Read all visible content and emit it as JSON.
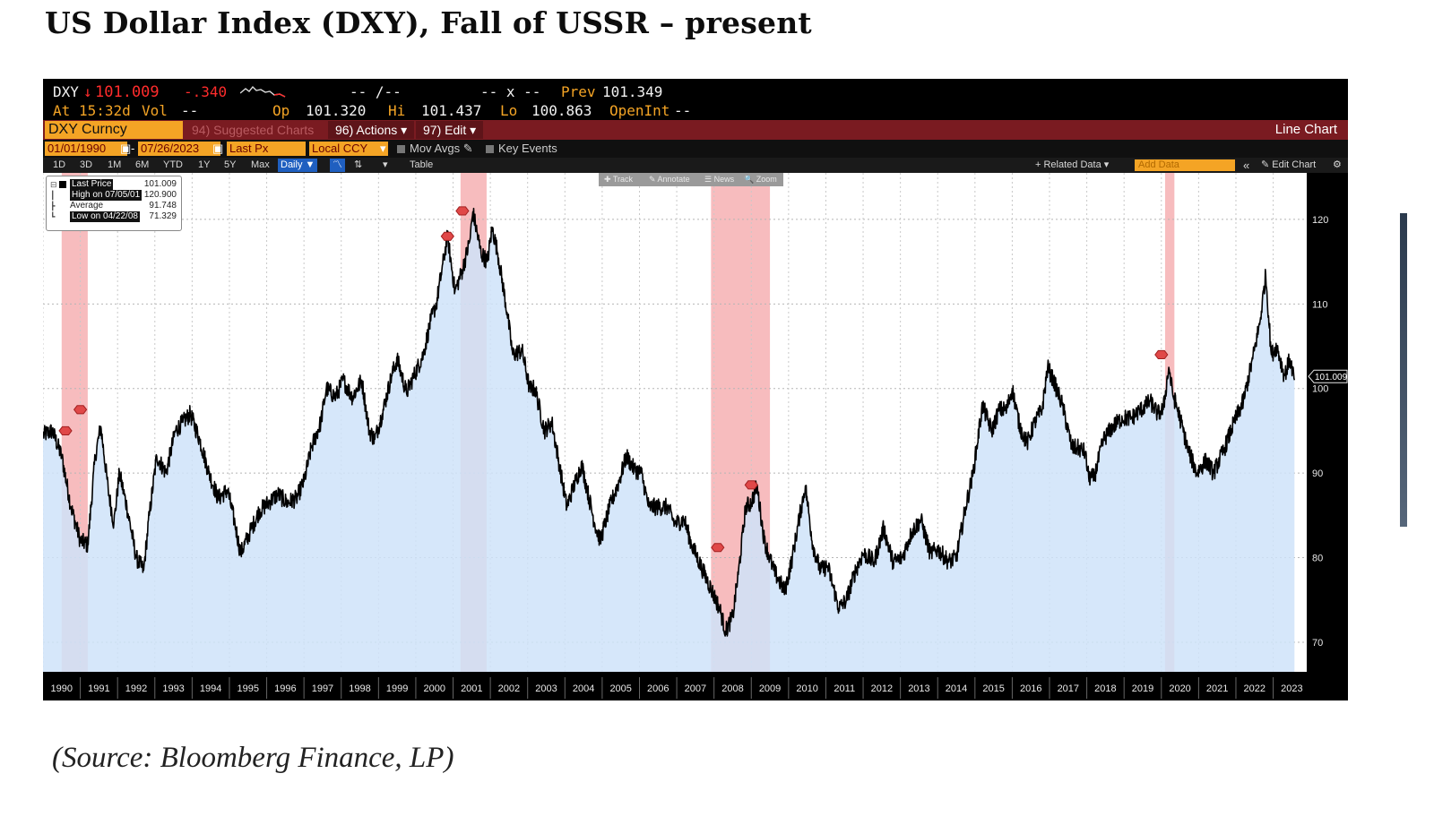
{
  "slide": {
    "title": "US Dollar Index (DXY), Fall of USSR – present",
    "source": "(Source: Bloomberg Finance, LP)"
  },
  "quote": {
    "ticker": "DXY",
    "arrow": "↓",
    "last": "101.009",
    "change": "-.340",
    "bid_ask": "-- /--",
    "size": "-- x --",
    "prev_label": "Prev",
    "prev": "101.349",
    "at_label": "At",
    "time": "15:32d",
    "vol_label": "Vol",
    "vol": "--",
    "op_label": "Op",
    "op": "101.320",
    "hi_label": "Hi",
    "hi": "101.437",
    "lo_label": "Lo",
    "lo": "100.863",
    "openint_label": "OpenInt",
    "openint": "--"
  },
  "toolbar": {
    "security": "DXY Curncy",
    "suggested": "94) Suggested Charts",
    "actions": "96) Actions ▾",
    "edit": "97) Edit ▾",
    "chart_type": "Line Chart"
  },
  "settings": {
    "date_from": "01/01/1990",
    "date_to": "07/26/2023",
    "field": "Last Px",
    "currency": "Local CCY",
    "mov_avgs": "Mov Avgs",
    "key_events": "Key Events"
  },
  "periods": [
    "1D",
    "3D",
    "1M",
    "6M",
    "YTD",
    "1Y",
    "5Y",
    "Max"
  ],
  "frequency": "Daily ▼",
  "table_label": "Table",
  "right_tools": {
    "related": "+ Related Data ▾",
    "add_data": "Add Data",
    "collapse": "«",
    "edit_chart": "Edit Chart",
    "gear": "⚙"
  },
  "chart_tools": [
    "✚ Track",
    "✎ Annotate",
    "☰ News",
    "🔍 Zoom"
  ],
  "legend": {
    "rows": [
      {
        "label": "Last Price",
        "value": "101.009"
      },
      {
        "label": "High on 07/05/01",
        "value": "120.900"
      },
      {
        "label": "Average",
        "value": "91.748"
      },
      {
        "label": "Low on 04/22/08",
        "value": "71.329"
      }
    ]
  },
  "colors": {
    "orange": "#f4a425",
    "red_bar": "#7a1b21",
    "price_red": "#ff2c2c",
    "area_fill": "#cfe3f9",
    "recession": "#f4a6a8",
    "line": "#000000"
  },
  "chart_data": {
    "type": "area",
    "title": "",
    "series": [
      {
        "name": "Last Price",
        "values_ref": "points"
      }
    ],
    "ylim": [
      66.5,
      125.5
    ],
    "yticks": [
      70,
      80,
      90,
      100,
      110,
      120
    ],
    "last_value_label": "101.009",
    "xlim": [
      1990.0,
      2023.9
    ],
    "x_tick_labels": [
      "1990",
      "1991",
      "1992",
      "1993",
      "1994",
      "1995",
      "1996",
      "1997",
      "1998",
      "1999",
      "2000",
      "2001",
      "2002",
      "2003",
      "2004",
      "2005",
      "2006",
      "2007",
      "2008",
      "2009",
      "2010",
      "2011",
      "2012",
      "2013",
      "2014",
      "2015",
      "2016",
      "2017",
      "2018",
      "2019",
      "2020",
      "2021",
      "2022",
      "2023"
    ],
    "grid": true,
    "legend_placement": "top-left",
    "recession_bands": [
      [
        1990.5,
        1991.2
      ],
      [
        2001.2,
        2001.9
      ],
      [
        2007.92,
        2009.5
      ],
      [
        2020.1,
        2020.35
      ]
    ],
    "points": [
      [
        1990.0,
        94.5
      ],
      [
        1990.25,
        95.0
      ],
      [
        1990.5,
        92.0
      ],
      [
        1990.75,
        86.0
      ],
      [
        1991.0,
        82.0
      ],
      [
        1991.2,
        81.5
      ],
      [
        1991.4,
        92.0
      ],
      [
        1991.55,
        95.5
      ],
      [
        1991.75,
        88.0
      ],
      [
        1991.9,
        84.0
      ],
      [
        1992.05,
        90.0
      ],
      [
        1992.25,
        86.0
      ],
      [
        1992.5,
        80.0
      ],
      [
        1992.7,
        78.5
      ],
      [
        1992.85,
        85.0
      ],
      [
        1993.05,
        92.0
      ],
      [
        1993.3,
        90.0
      ],
      [
        1993.55,
        95.0
      ],
      [
        1993.75,
        96.0
      ],
      [
        1993.95,
        97.0
      ],
      [
        1994.2,
        94.0
      ],
      [
        1994.45,
        90.0
      ],
      [
        1994.7,
        87.0
      ],
      [
        1994.95,
        88.0
      ],
      [
        1995.15,
        84.0
      ],
      [
        1995.3,
        80.5
      ],
      [
        1995.55,
        83.0
      ],
      [
        1995.8,
        85.5
      ],
      [
        1996.05,
        86.5
      ],
      [
        1996.3,
        87.5
      ],
      [
        1996.55,
        86.5
      ],
      [
        1996.8,
        87.0
      ],
      [
        1997.0,
        89.0
      ],
      [
        1997.2,
        93.0
      ],
      [
        1997.45,
        96.0
      ],
      [
        1997.6,
        100.0
      ],
      [
        1997.85,
        99.0
      ],
      [
        1998.05,
        101.0
      ],
      [
        1998.3,
        99.0
      ],
      [
        1998.55,
        101.0
      ],
      [
        1998.75,
        95.0
      ],
      [
        1998.9,
        94.0
      ],
      [
        1999.1,
        97.0
      ],
      [
        1999.35,
        101.5
      ],
      [
        1999.5,
        103.5
      ],
      [
        1999.75,
        99.5
      ],
      [
        1999.95,
        101.5
      ],
      [
        2000.2,
        104.0
      ],
      [
        2000.4,
        108.0
      ],
      [
        2000.55,
        110.0
      ],
      [
        2000.7,
        114.0
      ],
      [
        2000.85,
        118.0
      ],
      [
        2001.05,
        111.5
      ],
      [
        2001.25,
        114.0
      ],
      [
        2001.45,
        117.5
      ],
      [
        2001.53,
        120.9
      ],
      [
        2001.75,
        116.0
      ],
      [
        2001.92,
        115.0
      ],
      [
        2002.05,
        119.0
      ],
      [
        2002.2,
        116.0
      ],
      [
        2002.45,
        109.0
      ],
      [
        2002.6,
        104.0
      ],
      [
        2002.85,
        104.5
      ],
      [
        2003.05,
        100.0
      ],
      [
        2003.2,
        100.0
      ],
      [
        2003.45,
        95.0
      ],
      [
        2003.65,
        96.0
      ],
      [
        2003.85,
        91.0
      ],
      [
        2004.05,
        86.0
      ],
      [
        2004.2,
        88.0
      ],
      [
        2004.45,
        91.0
      ],
      [
        2004.6,
        88.0
      ],
      [
        2004.8,
        84.0
      ],
      [
        2004.95,
        82.0
      ],
      [
        2005.2,
        86.0
      ],
      [
        2005.45,
        89.0
      ],
      [
        2005.65,
        92.0
      ],
      [
        2005.85,
        90.5
      ],
      [
        2006.05,
        90.0
      ],
      [
        2006.25,
        86.0
      ],
      [
        2006.5,
        86.0
      ],
      [
        2006.75,
        86.0
      ],
      [
        2006.95,
        84.0
      ],
      [
        2007.2,
        84.5
      ],
      [
        2007.4,
        81.5
      ],
      [
        2007.7,
        78.5
      ],
      [
        2007.95,
        76.0
      ],
      [
        2008.15,
        74.0
      ],
      [
        2008.31,
        71.3
      ],
      [
        2008.5,
        73.0
      ],
      [
        2008.65,
        78.0
      ],
      [
        2008.85,
        86.0
      ],
      [
        2009.0,
        86.5
      ],
      [
        2009.15,
        88.5
      ],
      [
        2009.35,
        82.0
      ],
      [
        2009.6,
        78.5
      ],
      [
        2009.9,
        76.0
      ],
      [
        2010.1,
        80.0
      ],
      [
        2010.3,
        85.0
      ],
      [
        2010.45,
        88.5
      ],
      [
        2010.65,
        81.5
      ],
      [
        2010.85,
        78.5
      ],
      [
        2011.05,
        79.0
      ],
      [
        2011.35,
        74.0
      ],
      [
        2011.55,
        75.0
      ],
      [
        2011.8,
        78.5
      ],
      [
        2012.0,
        80.5
      ],
      [
        2012.3,
        79.5
      ],
      [
        2012.55,
        83.5
      ],
      [
        2012.8,
        79.5
      ],
      [
        2013.05,
        80.0
      ],
      [
        2013.3,
        83.0
      ],
      [
        2013.55,
        84.5
      ],
      [
        2013.8,
        80.5
      ],
      [
        2014.0,
        81.0
      ],
      [
        2014.3,
        79.5
      ],
      [
        2014.5,
        80.0
      ],
      [
        2014.75,
        86.0
      ],
      [
        2014.95,
        90.0
      ],
      [
        2015.2,
        98.0
      ],
      [
        2015.45,
        95.0
      ],
      [
        2015.65,
        97.5
      ],
      [
        2015.85,
        97.5
      ],
      [
        2016.0,
        100.0
      ],
      [
        2016.2,
        95.5
      ],
      [
        2016.4,
        93.5
      ],
      [
        2016.6,
        96.0
      ],
      [
        2016.8,
        97.5
      ],
      [
        2016.95,
        102.5
      ],
      [
        2017.1,
        101.0
      ],
      [
        2017.35,
        98.0
      ],
      [
        2017.6,
        93.0
      ],
      [
        2017.75,
        93.0
      ],
      [
        2017.95,
        92.5
      ],
      [
        2018.05,
        89.5
      ],
      [
        2018.2,
        89.5
      ],
      [
        2018.45,
        94.0
      ],
      [
        2018.7,
        95.5
      ],
      [
        2018.95,
        96.5
      ],
      [
        2019.2,
        96.5
      ],
      [
        2019.45,
        97.5
      ],
      [
        2019.7,
        98.5
      ],
      [
        2019.9,
        97.0
      ],
      [
        2020.05,
        97.5
      ],
      [
        2020.2,
        102.5
      ],
      [
        2020.3,
        99.5
      ],
      [
        2020.5,
        96.5
      ],
      [
        2020.7,
        93.0
      ],
      [
        2020.95,
        90.0
      ],
      [
        2021.2,
        91.5
      ],
      [
        2021.4,
        90.0
      ],
      [
        2021.7,
        93.0
      ],
      [
        2021.95,
        96.0
      ],
      [
        2022.2,
        98.5
      ],
      [
        2022.45,
        103.5
      ],
      [
        2022.65,
        108.0
      ],
      [
        2022.8,
        113.5
      ],
      [
        2022.95,
        104.0
      ],
      [
        2023.1,
        105.0
      ],
      [
        2023.3,
        101.5
      ],
      [
        2023.45,
        103.5
      ],
      [
        2023.57,
        101.0
      ]
    ]
  }
}
